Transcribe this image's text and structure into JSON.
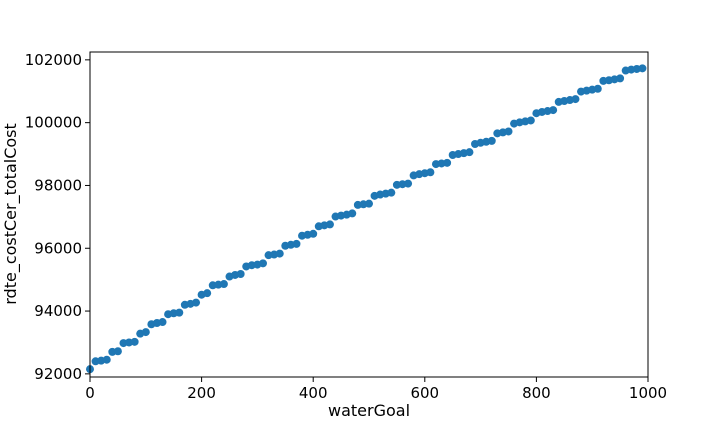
{
  "chart_data": {
    "type": "scatter",
    "title": "",
    "xlabel": "waterGoal",
    "ylabel": "rdte_costCer_totalCost",
    "xlim": [
      0,
      1000
    ],
    "ylim": [
      91900,
      102250
    ],
    "x_ticks": [
      0,
      200,
      400,
      600,
      800,
      1000
    ],
    "x_tick_labels": [
      "0",
      "200",
      "400",
      "600",
      "800",
      "1000"
    ],
    "y_ticks": [
      92000,
      94000,
      96000,
      98000,
      100000,
      102000
    ],
    "y_tick_labels": [
      "92000",
      "94000",
      "96000",
      "98000",
      "100000",
      "102000"
    ],
    "grid": false,
    "marker_color": "#1f77b4",
    "series": [
      {
        "x": [
          0,
          10,
          20,
          30,
          40,
          50,
          60,
          70,
          80,
          90,
          100,
          110,
          120,
          130,
          140,
          150,
          160,
          170,
          180,
          190,
          200,
          210,
          220,
          230,
          240,
          250,
          260,
          270,
          280,
          290,
          300,
          310,
          320,
          330,
          340,
          350,
          360,
          370,
          380,
          390,
          400,
          410,
          420,
          430,
          440,
          450,
          460,
          470,
          480,
          490,
          500,
          510,
          520,
          530,
          540,
          550,
          560,
          570,
          580,
          590,
          600,
          610,
          620,
          630,
          640,
          650,
          660,
          670,
          680,
          690,
          700,
          710,
          720,
          730,
          740,
          750,
          760,
          770,
          780,
          790,
          800,
          810,
          820,
          830,
          840,
          850,
          860,
          870,
          880,
          890,
          900,
          910,
          920,
          930,
          940,
          950,
          960,
          970,
          980,
          990
        ],
        "y": [
          92150,
          92400,
          92420,
          92450,
          92700,
          92720,
          92980,
          93000,
          93020,
          93280,
          93330,
          93580,
          93620,
          93650,
          93900,
          93930,
          93950,
          94200,
          94230,
          94270,
          94520,
          94570,
          94820,
          94840,
          94860,
          95100,
          95150,
          95180,
          95420,
          95460,
          95480,
          95520,
          95780,
          95800,
          95830,
          96080,
          96110,
          96140,
          96400,
          96430,
          96460,
          96700,
          96730,
          96760,
          97010,
          97040,
          97070,
          97110,
          97380,
          97400,
          97420,
          97670,
          97710,
          97740,
          97770,
          98020,
          98040,
          98060,
          98320,
          98360,
          98390,
          98420,
          98680,
          98700,
          98720,
          98970,
          99000,
          99030,
          99060,
          99320,
          99360,
          99390,
          99420,
          99660,
          99690,
          99720,
          99970,
          100010,
          100040,
          100070,
          100300,
          100340,
          100370,
          100400,
          100660,
          100690,
          100720,
          100750,
          100990,
          101020,
          101050,
          101080,
          101330,
          101350,
          101380,
          101410,
          101660,
          101690,
          101710,
          101730
        ]
      }
    ]
  }
}
